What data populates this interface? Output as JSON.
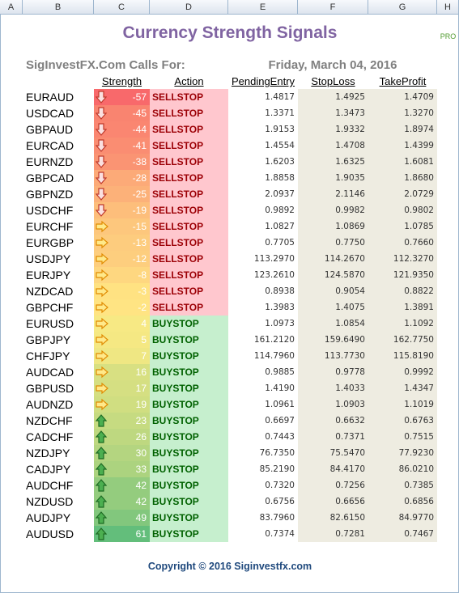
{
  "columns": [
    "A",
    "B",
    "C",
    "D",
    "E",
    "F",
    "G",
    "H"
  ],
  "title": "Currency Strength Signals",
  "badge": "PRO",
  "caller": "SigInvestFX.Com Calls For:",
  "date": "Friday, March 04, 2016",
  "headers": [
    "Strength",
    "Action",
    "PendingEntry",
    "StopLoss",
    "TakeProfit"
  ],
  "rows": [
    [
      "EURAUD",
      -57,
      "SELLSTOP",
      "1.4817",
      "1.4925",
      "1.4709"
    ],
    [
      "USDCAD",
      -45,
      "SELLSTOP",
      "1.3371",
      "1.3473",
      "1.3270"
    ],
    [
      "GBPAUD",
      -44,
      "SELLSTOP",
      "1.9153",
      "1.9332",
      "1.8974"
    ],
    [
      "EURCAD",
      -41,
      "SELLSTOP",
      "1.4554",
      "1.4708",
      "1.4399"
    ],
    [
      "EURNZD",
      -38,
      "SELLSTOP",
      "1.6203",
      "1.6325",
      "1.6081"
    ],
    [
      "GBPCAD",
      -28,
      "SELLSTOP",
      "1.8858",
      "1.9035",
      "1.8680"
    ],
    [
      "GBPNZD",
      -25,
      "SELLSTOP",
      "2.0937",
      "2.1146",
      "2.0729"
    ],
    [
      "USDCHF",
      -19,
      "SELLSTOP",
      "0.9892",
      "0.9982",
      "0.9802"
    ],
    [
      "EURCHF",
      -15,
      "SELLSTOP",
      "1.0827",
      "1.0869",
      "1.0785"
    ],
    [
      "EURGBP",
      -13,
      "SELLSTOP",
      "0.7705",
      "0.7750",
      "0.7660"
    ],
    [
      "USDJPY",
      -12,
      "SELLSTOP",
      "113.2970",
      "114.2670",
      "112.3270"
    ],
    [
      "EURJPY",
      -8,
      "SELLSTOP",
      "123.2610",
      "124.5870",
      "121.9350"
    ],
    [
      "NZDCAD",
      -3,
      "SELLSTOP",
      "0.8938",
      "0.9054",
      "0.8822"
    ],
    [
      "GBPCHF",
      -2,
      "SELLSTOP",
      "1.3983",
      "1.4075",
      "1.3891"
    ],
    [
      "EURUSD",
      4,
      "BUYSTOP",
      "1.0973",
      "1.0854",
      "1.1092"
    ],
    [
      "GBPJPY",
      5,
      "BUYSTOP",
      "161.2120",
      "159.6490",
      "162.7750"
    ],
    [
      "CHFJPY",
      7,
      "BUYSTOP",
      "114.7960",
      "113.7730",
      "115.8190"
    ],
    [
      "AUDCAD",
      16,
      "BUYSTOP",
      "0.9885",
      "0.9778",
      "0.9992"
    ],
    [
      "GBPUSD",
      17,
      "BUYSTOP",
      "1.4190",
      "1.4033",
      "1.4347"
    ],
    [
      "AUDNZD",
      19,
      "BUYSTOP",
      "1.0961",
      "1.0903",
      "1.1019"
    ],
    [
      "NZDCHF",
      23,
      "BUYSTOP",
      "0.6697",
      "0.6632",
      "0.6763"
    ],
    [
      "CADCHF",
      26,
      "BUYSTOP",
      "0.7443",
      "0.7371",
      "0.7515"
    ],
    [
      "NZDJPY",
      30,
      "BUYSTOP",
      "76.7350",
      "75.5470",
      "77.9230"
    ],
    [
      "CADJPY",
      33,
      "BUYSTOP",
      "85.2190",
      "84.4170",
      "86.0210"
    ],
    [
      "AUDCHF",
      42,
      "BUYSTOP",
      "0.7320",
      "0.7256",
      "0.7385"
    ],
    [
      "NZDUSD",
      42,
      "BUYSTOP",
      "0.6756",
      "0.6656",
      "0.6856"
    ],
    [
      "AUDJPY",
      49,
      "BUYSTOP",
      "83.7960",
      "82.6150",
      "84.9770"
    ],
    [
      "AUDUSD",
      61,
      "BUYSTOP",
      "0.7374",
      "0.7281",
      "0.7467"
    ]
  ],
  "copyright": "Copyright  © 2016 Siginvestfx.com"
}
